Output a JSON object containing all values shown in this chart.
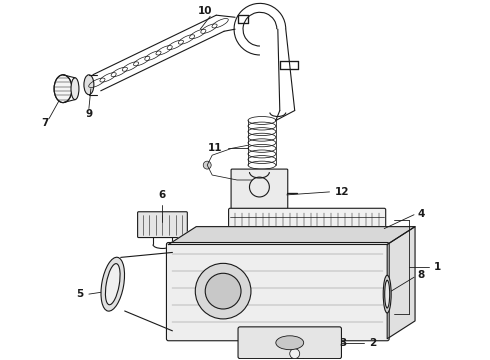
{
  "bg_color": "#ffffff",
  "lc": "#1a1a1a",
  "fig_w": 4.9,
  "fig_h": 3.6,
  "dpi": 100,
  "label_fs": 7.5,
  "lw": 0.8
}
